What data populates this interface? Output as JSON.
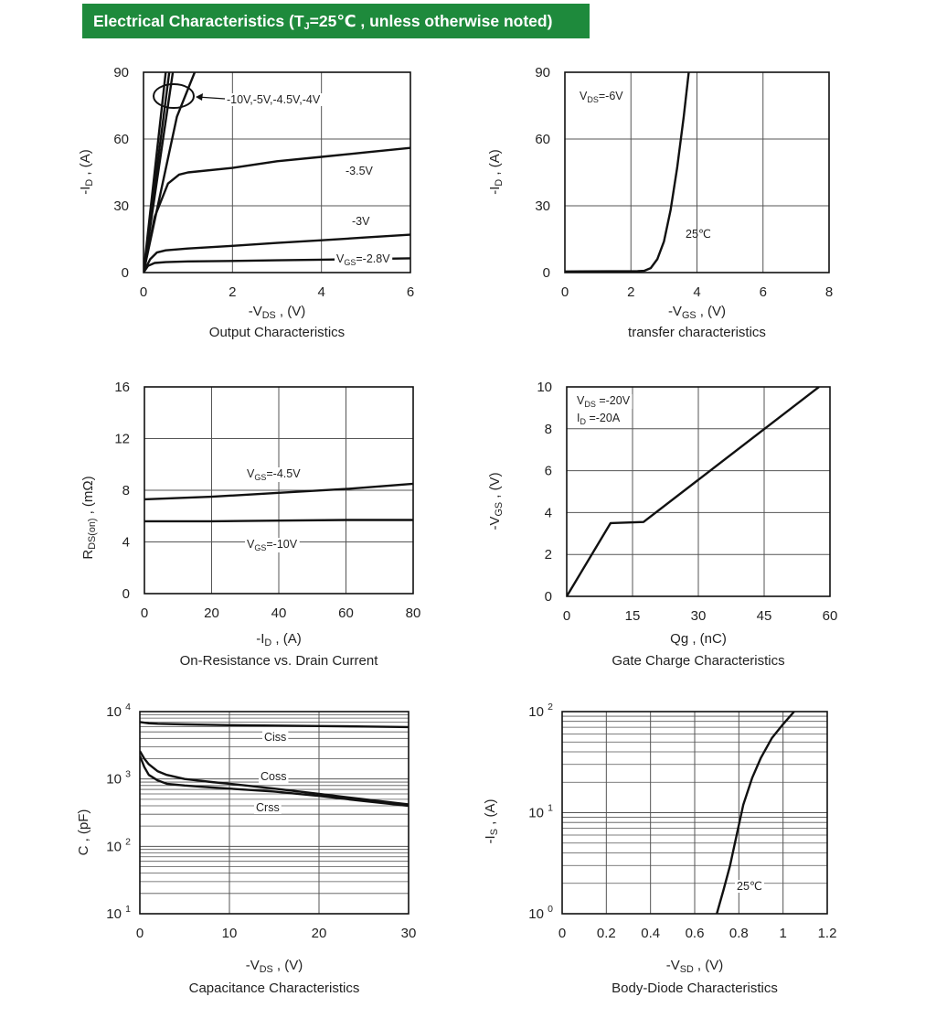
{
  "header": {
    "title_main": "Electrical Characteristics (T",
    "title_sub": "J",
    "title_rest": "=25℃ , unless otherwise noted)",
    "colors": {
      "background": "#1e8a3c",
      "text": "#ffffff"
    }
  },
  "chart_data": [
    {
      "id": "output",
      "type": "line",
      "title": "Output Characteristics",
      "xlabel": "-V",
      "xlabel_sub": "DS",
      "xlabel_unit": " , (V)",
      "ylabel": "-I",
      "ylabel_sub": "D",
      "ylabel_unit": " , (A)",
      "xlim": [
        0,
        6
      ],
      "ylim": [
        0,
        90
      ],
      "xticks": [
        0,
        2,
        4,
        6
      ],
      "yticks": [
        0,
        30,
        60,
        90
      ],
      "grid": true,
      "annotations": [
        "-10V,-5V,-4.5V,-4V",
        "-3.5V",
        "-3V",
        "V",
        "GS",
        "=-2.8V"
      ],
      "series": [
        {
          "name": "-10V",
          "x": [
            0,
            0.5
          ],
          "y": [
            0,
            90
          ]
        },
        {
          "name": "-5V",
          "x": [
            0,
            0.58
          ],
          "y": [
            0,
            90
          ]
        },
        {
          "name": "-4.5V",
          "x": [
            0,
            0.66
          ],
          "y": [
            0,
            90
          ]
        },
        {
          "name": "-4V",
          "x": [
            0,
            0.75,
            1.15
          ],
          "y": [
            0,
            70,
            90
          ]
        },
        {
          "name": "-3.5V",
          "x": [
            0,
            0.25,
            0.55,
            0.8,
            1.0,
            2,
            3,
            4,
            5,
            6
          ],
          "y": [
            0,
            25,
            40,
            44,
            45,
            47,
            50,
            52,
            54,
            56
          ]
        },
        {
          "name": "-3V",
          "x": [
            0,
            0.15,
            0.3,
            0.5,
            1.0,
            2,
            3,
            4,
            5,
            6
          ],
          "y": [
            0,
            6,
            9,
            10,
            10.8,
            12,
            13.3,
            14.5,
            15.8,
            17
          ]
        },
        {
          "name": "-2.8V",
          "x": [
            0,
            0.1,
            0.25,
            0.5,
            1.0,
            2,
            3,
            4,
            5,
            6
          ],
          "y": [
            0,
            3,
            4.3,
            4.7,
            5.0,
            5.2,
            5.5,
            5.8,
            6.1,
            6.4
          ]
        }
      ]
    },
    {
      "id": "transfer",
      "type": "line",
      "title": "transfer characteristics",
      "xlabel": "-V",
      "xlabel_sub": "GS",
      "xlabel_unit": " , (V)",
      "ylabel": "-I",
      "ylabel_sub": "D",
      "ylabel_unit": " , (A)",
      "xlim": [
        0,
        8
      ],
      "ylim": [
        0,
        90
      ],
      "xticks": [
        0,
        2,
        4,
        6,
        8
      ],
      "yticks": [
        0,
        30,
        60,
        90
      ],
      "grid": true,
      "annotations": [
        "V",
        "DS",
        "=-6V",
        "25℃"
      ],
      "series": [
        {
          "name": "25℃",
          "x": [
            0,
            2.2,
            2.4,
            2.6,
            2.8,
            3.0,
            3.2,
            3.4,
            3.6,
            3.75
          ],
          "y": [
            0.5,
            0.6,
            0.8,
            2,
            6,
            14,
            28,
            47,
            70,
            90
          ]
        }
      ]
    },
    {
      "id": "ron",
      "type": "line",
      "title": "On-Resistance vs. Drain Current",
      "xlabel": "-I",
      "xlabel_sub": "D",
      "xlabel_unit": " , (A)",
      "ylabel": "R",
      "ylabel_sub": "DS(on)",
      "ylabel_unit": " , (mΩ)",
      "xlim": [
        0,
        80
      ],
      "ylim": [
        0,
        16
      ],
      "xticks": [
        0,
        20,
        40,
        60,
        80
      ],
      "yticks": [
        0,
        4,
        8,
        12,
        16
      ],
      "grid": true,
      "annotations": [
        "V",
        "GS",
        "=-4.5V",
        "V",
        "GS",
        "=-10V"
      ],
      "series": [
        {
          "name": "V_GS=-4.5V",
          "x": [
            0,
            20,
            40,
            60,
            80
          ],
          "y": [
            7.3,
            7.5,
            7.8,
            8.1,
            8.5
          ]
        },
        {
          "name": "V_GS=-10V",
          "x": [
            0,
            20,
            40,
            60,
            80
          ],
          "y": [
            5.6,
            5.6,
            5.65,
            5.7,
            5.7
          ]
        }
      ]
    },
    {
      "id": "gate",
      "type": "line",
      "title": "Gate Charge Characteristics",
      "xlabel": "Qg , (nC)",
      "ylabel": "-V",
      "ylabel_sub": "GS",
      "ylabel_unit": " , (V)",
      "xlim": [
        0,
        60
      ],
      "ylim": [
        0,
        10
      ],
      "xticks": [
        0,
        15,
        30,
        45,
        60
      ],
      "yticks": [
        0,
        2,
        4,
        6,
        8,
        10
      ],
      "grid": true,
      "annotations": [
        "V",
        "DS",
        " =-20V",
        "I",
        "D",
        " =-20A"
      ],
      "series": [
        {
          "name": "V_GS",
          "x": [
            0,
            10,
            17.5,
            57.5
          ],
          "y": [
            0,
            3.5,
            3.55,
            10
          ]
        }
      ]
    },
    {
      "id": "cap",
      "type": "line",
      "title": "Capacitance Characteristics",
      "xlabel": "-V",
      "xlabel_sub": "DS",
      "xlabel_unit": " , (V)",
      "ylabel": "C , (pF)",
      "xlim": [
        0,
        30
      ],
      "ylim": [
        10,
        10000
      ],
      "yscale": "log",
      "xticks": [
        0,
        10,
        20,
        30
      ],
      "yticks": [
        "10^1",
        "10^2",
        "10^3",
        "10^4"
      ],
      "grid": true,
      "annotations": [
        "Ciss",
        "Coss",
        "Crss"
      ],
      "series": [
        {
          "name": "Ciss",
          "x": [
            0,
            1,
            2,
            5,
            10,
            15,
            20,
            25,
            30
          ],
          "y": [
            7000,
            6700,
            6600,
            6450,
            6300,
            6200,
            6100,
            6000,
            5900
          ]
        },
        {
          "name": "Coss",
          "x": [
            0,
            0.5,
            1,
            2,
            3,
            5,
            8,
            10,
            15,
            20,
            25,
            30
          ],
          "y": [
            2600,
            2000,
            1650,
            1300,
            1150,
            1000,
            900,
            850,
            720,
            600,
            500,
            420
          ]
        },
        {
          "name": "Crss",
          "x": [
            0,
            0.5,
            1,
            2,
            3,
            5,
            8,
            10,
            15,
            20,
            25,
            30
          ],
          "y": [
            2200,
            1500,
            1150,
            950,
            850,
            800,
            750,
            720,
            650,
            560,
            470,
            400
          ]
        }
      ]
    },
    {
      "id": "diode",
      "type": "line",
      "title": "Body-Diode Characteristics",
      "xlabel": "-V",
      "xlabel_sub": "SD",
      "xlabel_unit": " , (V)",
      "ylabel": "-I",
      "ylabel_sub": "S",
      "ylabel_unit": " , (A)",
      "xlim": [
        0,
        1.2
      ],
      "ylim": [
        1,
        100
      ],
      "yscale": "log",
      "xticks": [
        "0",
        "0.2",
        "0.4",
        "0.6",
        "0.8",
        "1",
        "1.2"
      ],
      "yticks": [
        "10^0",
        "10^1",
        "10^2"
      ],
      "grid": true,
      "annotations": [
        "25℃"
      ],
      "series": [
        {
          "name": "25℃",
          "x": [
            0.7,
            0.73,
            0.76,
            0.79,
            0.82,
            0.86,
            0.9,
            0.95,
            1.0,
            1.05
          ],
          "y": [
            1,
            1.7,
            3,
            6,
            12,
            22,
            35,
            55,
            75,
            100
          ]
        }
      ]
    }
  ]
}
